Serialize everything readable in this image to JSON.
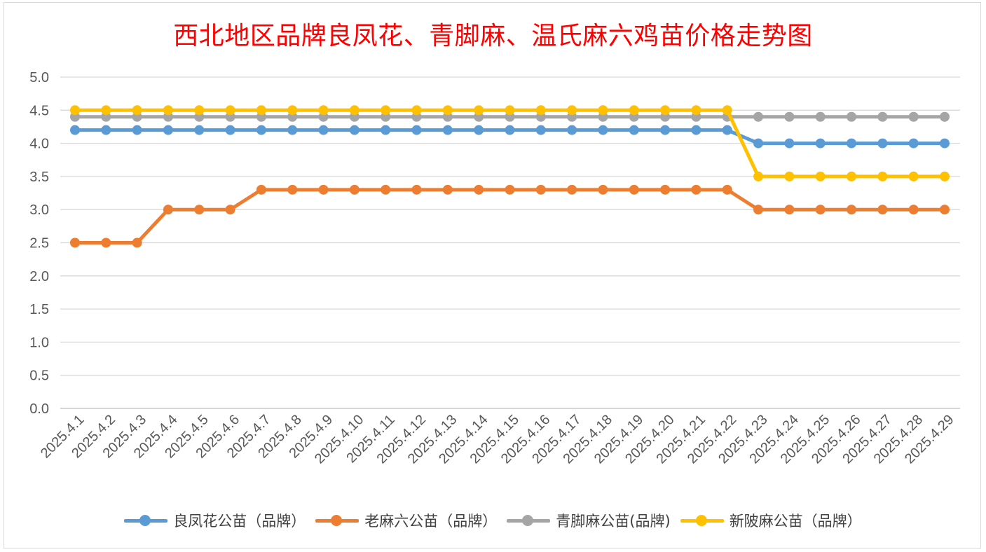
{
  "chart_data": {
    "type": "line",
    "title": "西北地区品牌良凤花、青脚麻、温氏麻六鸡苗价格走势图",
    "xlabel": "",
    "ylabel": "",
    "ylim": [
      0,
      5
    ],
    "yticks": [
      "0.0",
      "0.5",
      "1.0",
      "1.5",
      "2.0",
      "2.5",
      "3.0",
      "3.5",
      "4.0",
      "4.5",
      "5.0"
    ],
    "grid": true,
    "legend_position": "bottom",
    "categories": [
      "2025.4.1",
      "2025.4.2",
      "2025.4.3",
      "2025.4.4",
      "2025.4.5",
      "2025.4.6",
      "2025.4.7",
      "2025.4.8",
      "2025.4.9",
      "2025.4.10",
      "2025.4.11",
      "2025.4.12",
      "2025.4.13",
      "2025.4.14",
      "2025.4.15",
      "2025.4.16",
      "2025.4.17",
      "2025.4.18",
      "2025.4.19",
      "2025.4.20",
      "2025.4.21",
      "2025.4.22",
      "2025.4.23",
      "2025.4.24",
      "2025.4.25",
      "2025.4.26",
      "2025.4.27",
      "2025.4.28",
      "2025.4.29"
    ],
    "series": [
      {
        "name": "良凤花公苗（品牌）",
        "color": "#5b9bd5",
        "values": [
          4.2,
          4.2,
          4.2,
          4.2,
          4.2,
          4.2,
          4.2,
          4.2,
          4.2,
          4.2,
          4.2,
          4.2,
          4.2,
          4.2,
          4.2,
          4.2,
          4.2,
          4.2,
          4.2,
          4.2,
          4.2,
          4.2,
          4.0,
          4.0,
          4.0,
          4.0,
          4.0,
          4.0,
          4.0
        ]
      },
      {
        "name": "老麻六公苗（品牌）",
        "color": "#ed7d31",
        "values": [
          2.5,
          2.5,
          2.5,
          3.0,
          3.0,
          3.0,
          3.3,
          3.3,
          3.3,
          3.3,
          3.3,
          3.3,
          3.3,
          3.3,
          3.3,
          3.3,
          3.3,
          3.3,
          3.3,
          3.3,
          3.3,
          3.3,
          3.0,
          3.0,
          3.0,
          3.0,
          3.0,
          3.0,
          3.0
        ]
      },
      {
        "name": "青脚麻公苗(品牌)",
        "color": "#a5a5a5",
        "values": [
          4.4,
          4.4,
          4.4,
          4.4,
          4.4,
          4.4,
          4.4,
          4.4,
          4.4,
          4.4,
          4.4,
          4.4,
          4.4,
          4.4,
          4.4,
          4.4,
          4.4,
          4.4,
          4.4,
          4.4,
          4.4,
          4.4,
          4.4,
          4.4,
          4.4,
          4.4,
          4.4,
          4.4,
          4.4
        ]
      },
      {
        "name": "新陂麻公苗（品牌）",
        "color": "#ffc000",
        "values": [
          4.5,
          4.5,
          4.5,
          4.5,
          4.5,
          4.5,
          4.5,
          4.5,
          4.5,
          4.5,
          4.5,
          4.5,
          4.5,
          4.5,
          4.5,
          4.5,
          4.5,
          4.5,
          4.5,
          4.5,
          4.5,
          4.5,
          3.5,
          3.5,
          3.5,
          3.5,
          3.5,
          3.5,
          3.5
        ]
      }
    ]
  }
}
